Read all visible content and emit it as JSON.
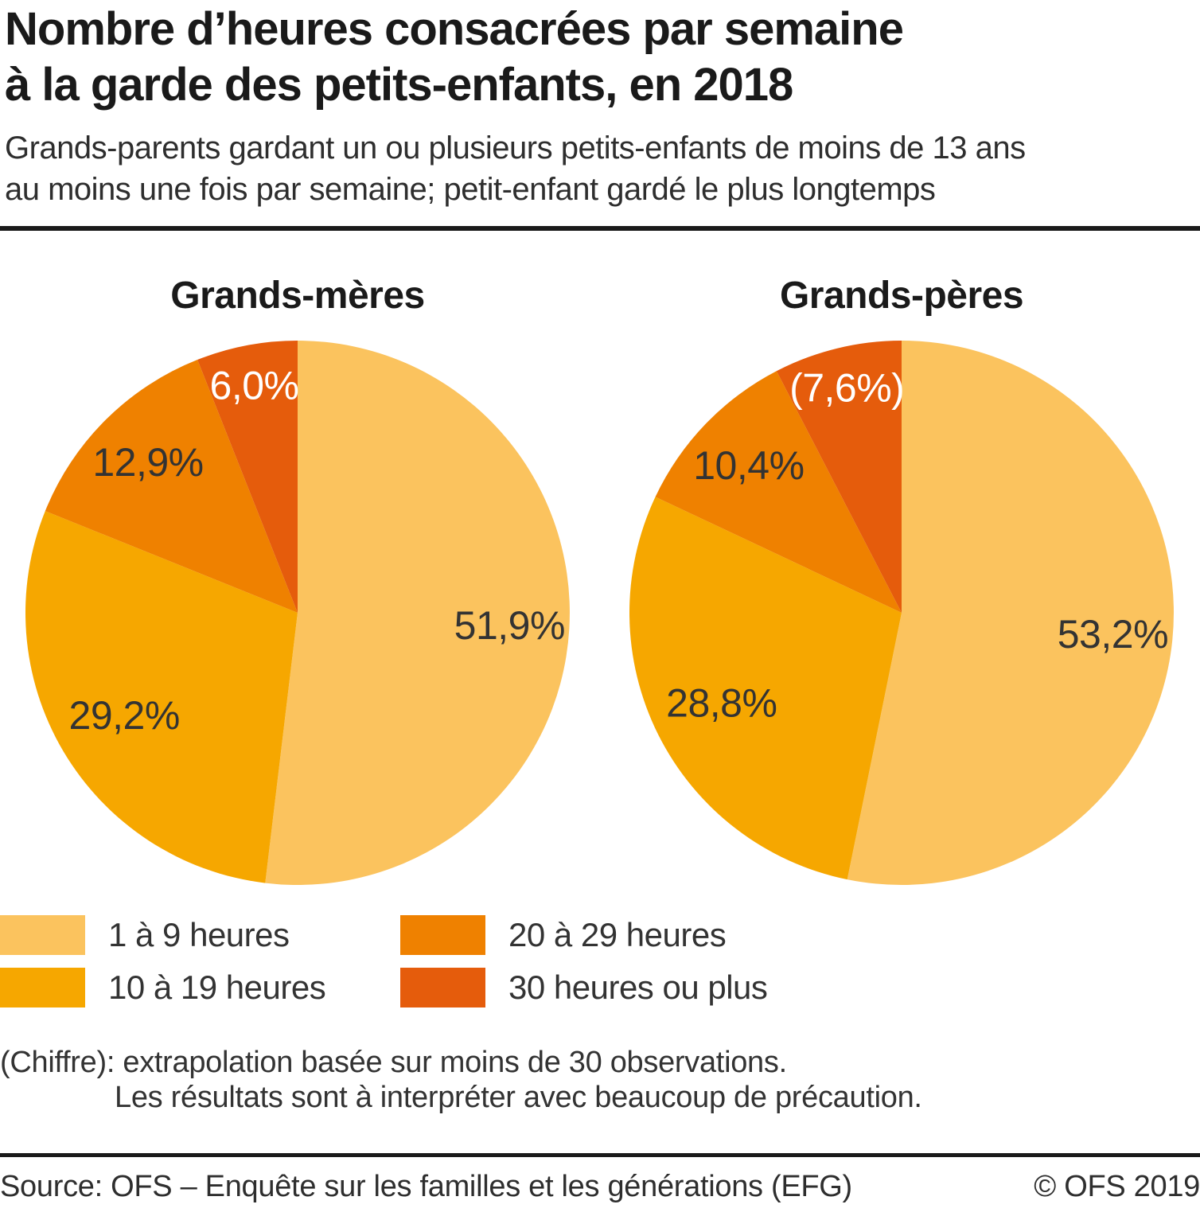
{
  "header": {
    "title_line1": "Nombre d’heures consacrées par semaine",
    "title_line2": "à la garde des petits-enfants, en 2018",
    "subtitle_line1": "Grands-parents gardant un ou plusieurs petits-enfants de moins de 13 ans",
    "subtitle_line2": "au moins une fois par semaine; petit-enfant gardé le plus longtemps"
  },
  "chart_data": {
    "type": "pie",
    "unit": "percent",
    "start": "top",
    "direction": "clockwise",
    "legend_position": "bottom-left, two columns",
    "categories": [
      "1 à 9 heures",
      "10 à 19 heures",
      "20 à 29 heures",
      "30 heures ou plus"
    ],
    "category_colors": [
      "#FBC35E",
      "#F6A700",
      "#EF8100",
      "#E55C0C"
    ],
    "label_colors": [
      "#333333",
      "#333333",
      "#333333",
      "#ffffff"
    ],
    "series": [
      {
        "name": "Grands-mères",
        "values": [
          51.9,
          29.2,
          12.9,
          6.0
        ],
        "labels": [
          "51,9%",
          "29,2%",
          "12,9%",
          "6,0%"
        ]
      },
      {
        "name": "Grands-pères",
        "values": [
          53.2,
          28.8,
          10.4,
          7.6
        ],
        "labels": [
          "53,2%",
          "28,8%",
          "10,4%",
          "(7,6%)"
        ]
      }
    ]
  },
  "footnote": {
    "line1": "(Chiffre): extrapolation basée sur moins de 30 observations.",
    "line2": "Les résultats sont à interpréter avec beaucoup de précaution."
  },
  "footer": {
    "source": "Source: OFS – Enquête sur les familles et les générations (EFG)",
    "copyright": "© OFS 2019"
  }
}
